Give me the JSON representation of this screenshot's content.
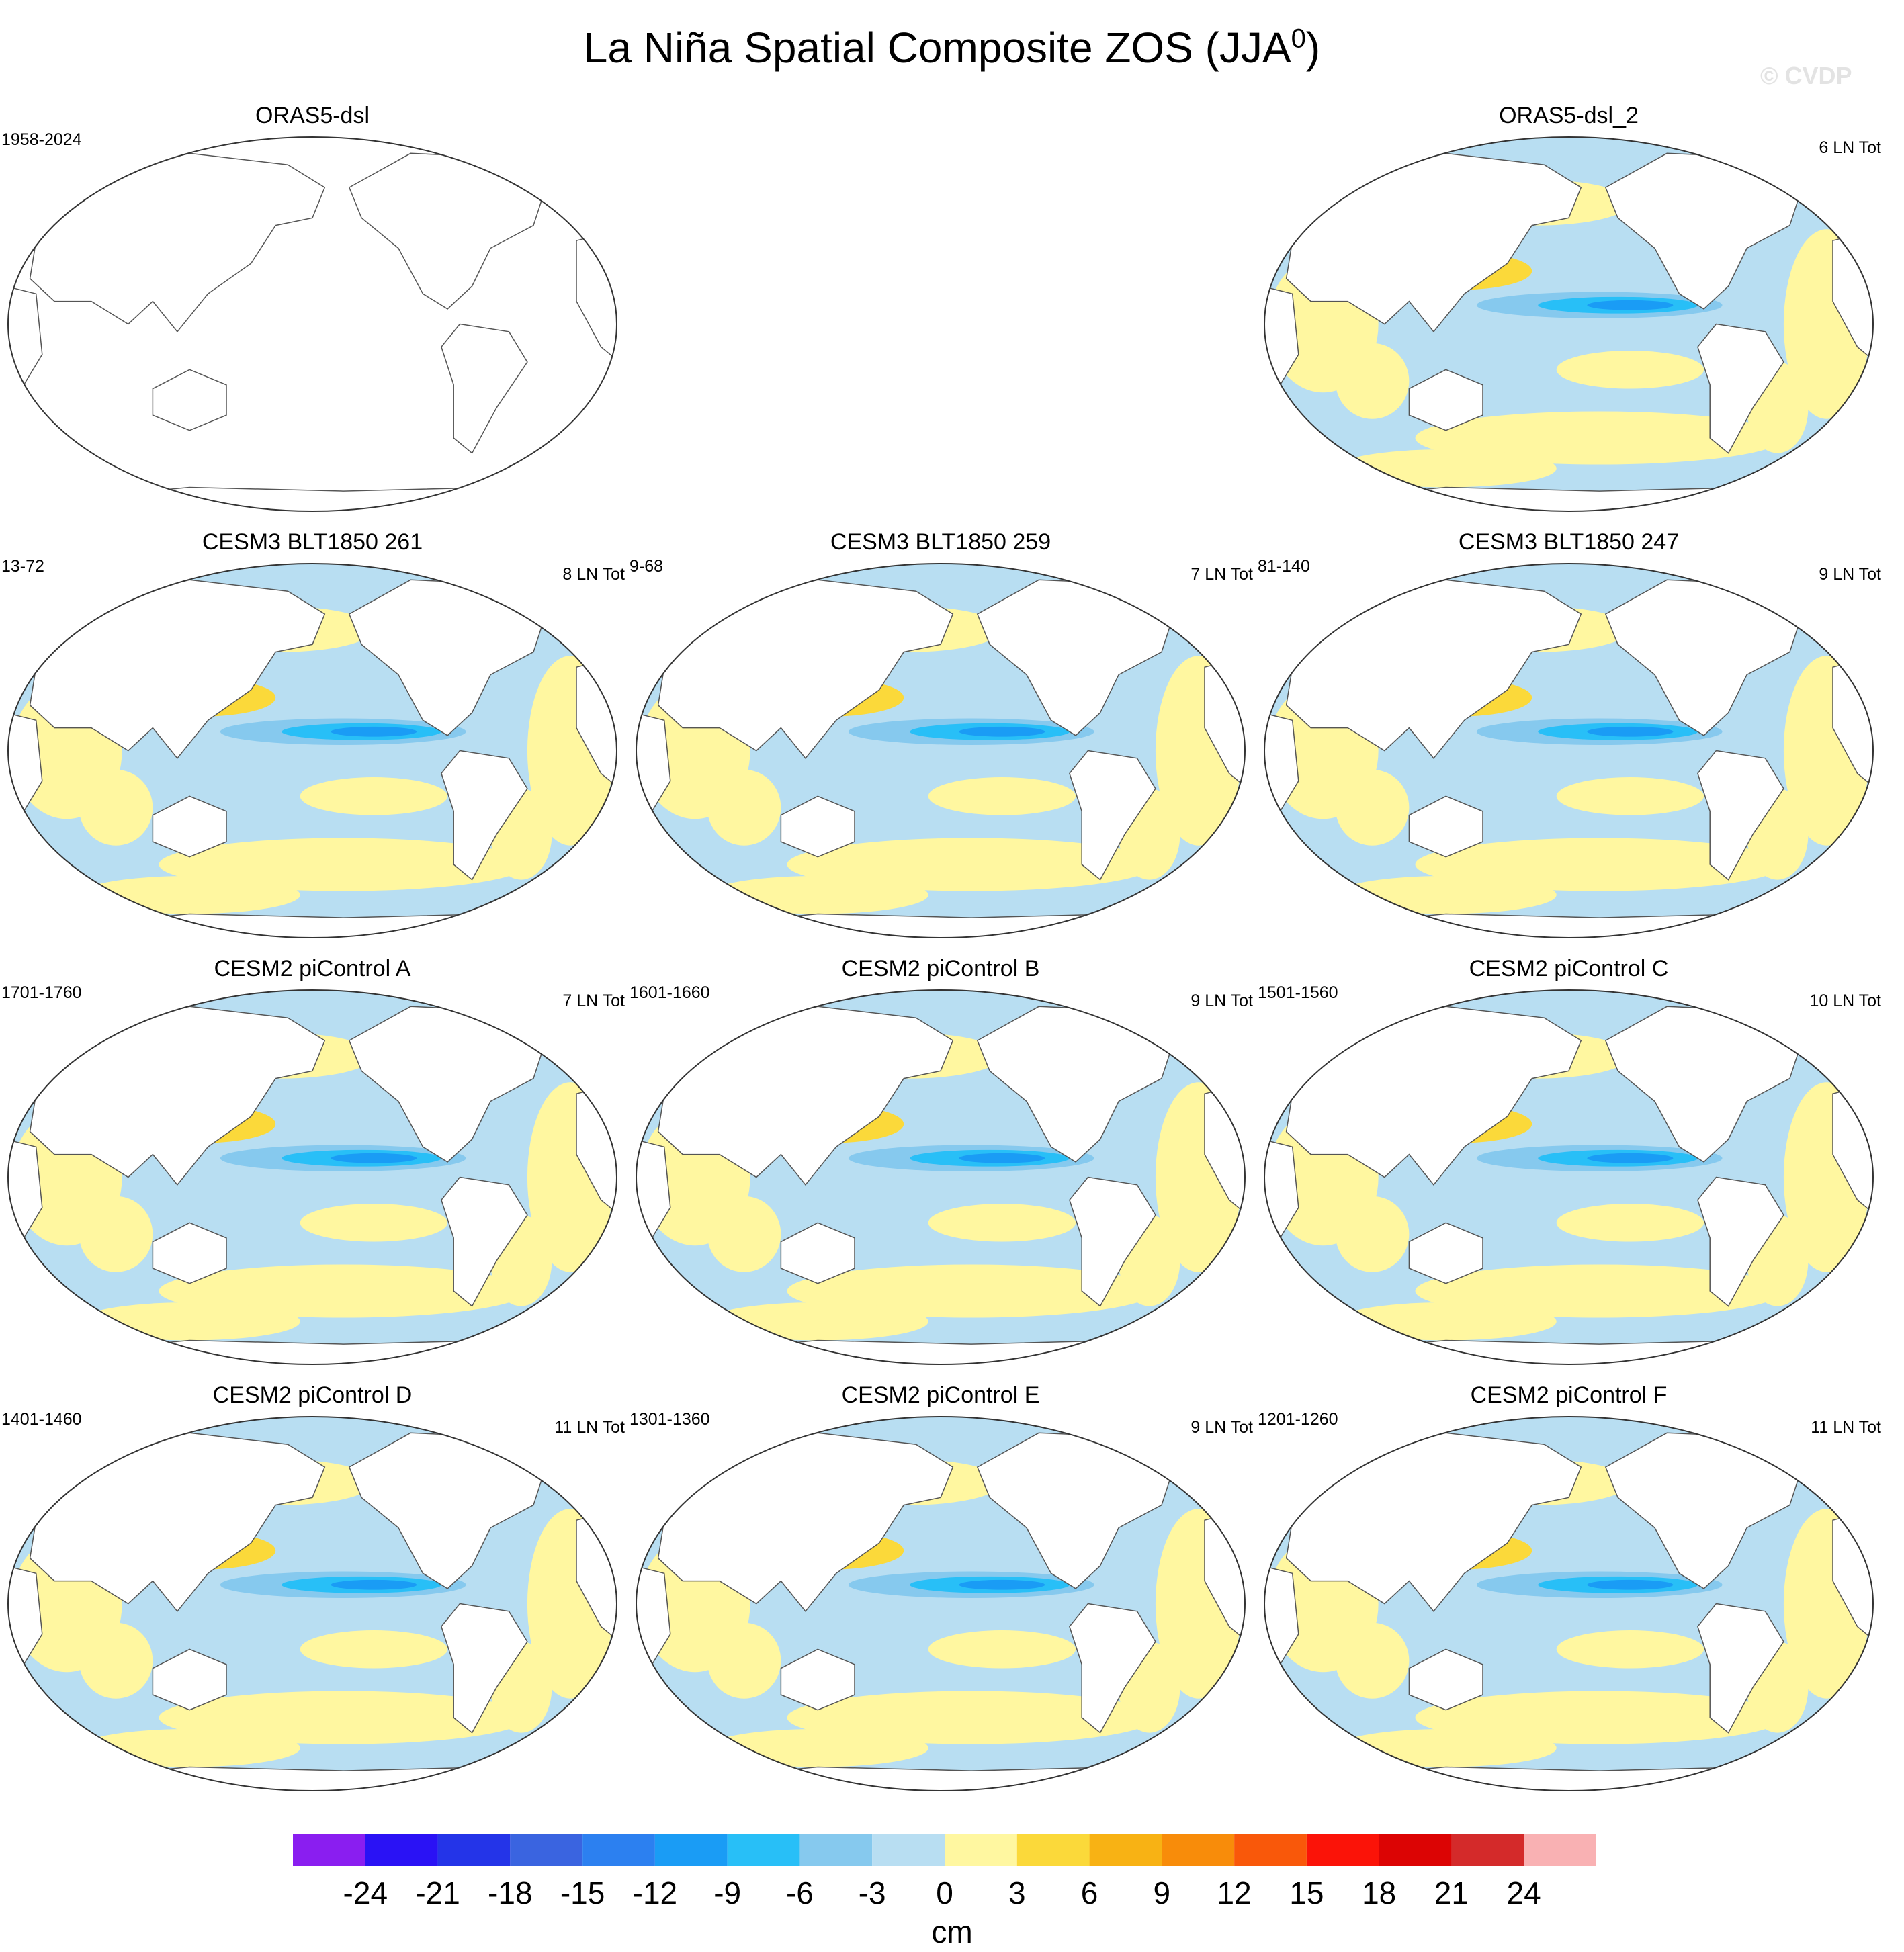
{
  "title": {
    "main": "La Niña Spatial Composite ZOS (JJA",
    "superscript": "0",
    "close": ")"
  },
  "watermark": "© CVDP",
  "panels": [
    {
      "title": "ORAS5-dsl",
      "years": "1958-2024",
      "count": "",
      "filled": false
    },
    {
      "title": "ORAS5-dsl_2",
      "years": "",
      "count": "6 LN Tot",
      "filled": true
    },
    {
      "title": "CESM3 BLT1850 261",
      "years": "13-72",
      "count": "8 LN Tot",
      "filled": true
    },
    {
      "title": "CESM3 BLT1850 259",
      "years": "9-68",
      "count": "7 LN Tot",
      "filled": true
    },
    {
      "title": "CESM3 BLT1850 247",
      "years": "81-140",
      "count": "9 LN Tot",
      "filled": true
    },
    {
      "title": "CESM2 piControl A",
      "years": "1701-1760",
      "count": "7 LN Tot",
      "filled": true
    },
    {
      "title": "CESM2 piControl B",
      "years": "1601-1660",
      "count": "9 LN Tot",
      "filled": true
    },
    {
      "title": "CESM2 piControl C",
      "years": "1501-1560",
      "count": "10 LN Tot",
      "filled": true
    },
    {
      "title": "CESM2 piControl D",
      "years": "1401-1460",
      "count": "11 LN Tot",
      "filled": true
    },
    {
      "title": "CESM2 piControl E",
      "years": "1301-1360",
      "count": "9 LN Tot",
      "filled": true
    },
    {
      "title": "CESM2 piControl F",
      "years": "1201-1260",
      "count": "11 LN Tot",
      "filled": true
    }
  ],
  "colorbar": {
    "units": "cm",
    "ticks": [
      "-24",
      "-21",
      "-18",
      "-15",
      "-12",
      "-9",
      "-6",
      "-3",
      "0",
      "3",
      "6",
      "9",
      "12",
      "15",
      "18",
      "21",
      "24"
    ],
    "colors": [
      "#8a1ef0",
      "#2a12f5",
      "#2434e8",
      "#3a64e0",
      "#2c80f0",
      "#1a9cf5",
      "#28bff7",
      "#86c9ee",
      "#b8def2",
      "#fff7a0",
      "#fbd93a",
      "#f8b214",
      "#f88c0a",
      "#f9580a",
      "#fb1308",
      "#dc0404",
      "#d42a2a",
      "#f9b1b3"
    ]
  },
  "colors": {
    "ocean_neutral": "#b8def2",
    "land": "#ffffff",
    "coast": "#555555"
  }
}
